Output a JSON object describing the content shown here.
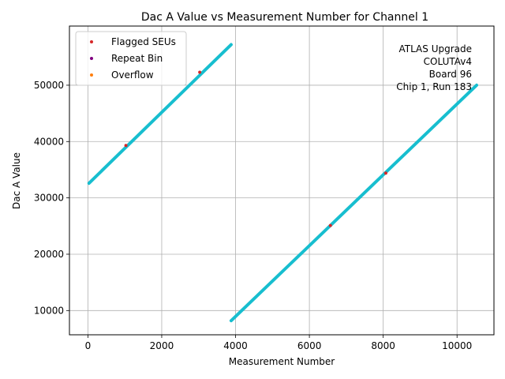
{
  "chart_data": {
    "type": "scatter",
    "title": "Dac A Value vs Measurement Number for Channel 1",
    "xlabel": "Measurement Number",
    "ylabel": "Dac A Value",
    "xlim": [
      -500,
      11000
    ],
    "ylim": [
      5700,
      60500
    ],
    "xticks": [
      0,
      2000,
      4000,
      6000,
      8000,
      10000
    ],
    "yticks": [
      10000,
      20000,
      30000,
      40000,
      50000
    ],
    "grid": true,
    "legend_position": "top-left",
    "legend": [
      {
        "name": "Flagged SEUs",
        "color": "#d62728"
      },
      {
        "name": "Repeat Bin",
        "color": "#800080"
      },
      {
        "name": "Overflow",
        "color": "#ff7f0e"
      }
    ],
    "annotation": [
      "ATLAS Upgrade",
      "COLUTAv4",
      "Board 96",
      "Chip 1, Run 183"
    ],
    "series": [
      {
        "color": "#17becf",
        "segments": [
          {
            "x": [
              30,
              3880
            ],
            "y": [
              32600,
              57200
            ]
          },
          {
            "x": [
              3880,
              10530
            ],
            "y": [
              8200,
              50000
            ]
          }
        ]
      }
    ],
    "flagged_points": {
      "x": [
        1030,
        3030,
        6570,
        8070
      ],
      "y": [
        39300,
        52300,
        25100,
        34400
      ]
    }
  }
}
